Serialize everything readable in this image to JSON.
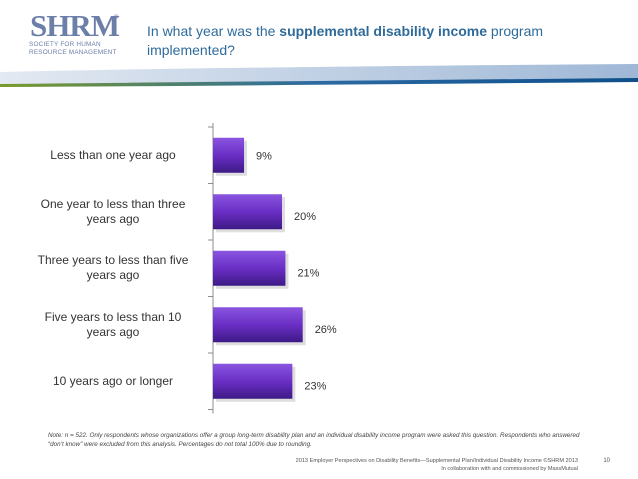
{
  "logo": {
    "letters": "SHRM",
    "trademark": "®",
    "tagline_line1": "SOCIETY FOR HUMAN",
    "tagline_line2": "RESOURCE MANAGEMENT"
  },
  "title": {
    "prefix": "In what year was the ",
    "emphasis": "supplemental disability income",
    "suffix": " program implemented?"
  },
  "chart_data": {
    "type": "bar",
    "orientation": "horizontal",
    "title": "In what year was the supplemental disability income program implemented?",
    "categories": [
      "Less than one year ago",
      "One year to less than three years ago",
      "Three years to less than five years ago",
      "Five years to less than 10 years ago",
      "10 years ago or longer"
    ],
    "values": [
      9,
      20,
      21,
      26,
      23
    ],
    "value_labels": [
      "9%",
      "20%",
      "21%",
      "26%",
      "23%"
    ],
    "xlim": [
      0,
      100
    ],
    "unit": "%",
    "bar_color": "#6a2ec4",
    "grid": false,
    "legend": "none"
  },
  "note": "Note: n = 522. Only respondents whose organizations offer a group long-term disability plan and an individual disability income program were asked this question. Respondents who answered “don’t know” were excluded from this analysis. Percentages do not total 100% due to rounding.",
  "footer": {
    "line1": "2013 Employer Perspectives on Disability Benefits—Supplemental Plan/Individual Disability Income ©SHRM 2013",
    "line2": "In collaboration with and commissioned by MassMutual"
  },
  "page_number": "10"
}
